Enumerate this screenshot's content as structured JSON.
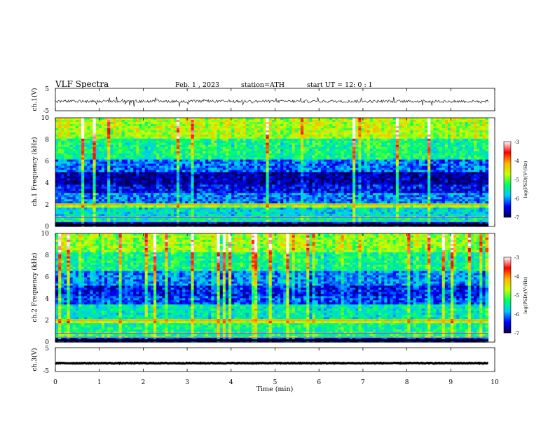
{
  "header": {
    "title": "VLF Spectra",
    "date": "Feb. 1 , 2023",
    "station": "station=ATH",
    "start_ut": "start UT = 12: 0 : 1"
  },
  "chart_data": [
    {
      "type": "line",
      "panel": "ch1-waveform",
      "ylabel": "ch.1(V)",
      "ylim": [
        -5,
        5
      ],
      "y_ticks": [
        "5",
        "-5"
      ],
      "baseline": -0.8,
      "noise_amplitude": 0.6,
      "spike_amplitude": 2.0
    },
    {
      "type": "heatmap",
      "panel": "ch1-spectrogram",
      "ylabel": "ch.1 Frequency (kHz)",
      "ylim": [
        0,
        10
      ],
      "y_ticks": [
        "0",
        "2",
        "4",
        "6",
        "8",
        "10"
      ],
      "xlim": [
        0,
        10
      ],
      "data_end_min": 9.85,
      "colorbar_label": "log(PSD)(V²/Hz)",
      "colorbar_range": [
        -7,
        -3
      ],
      "colorbar_ticks": [
        "-3",
        "-4",
        "-5",
        "-6",
        "-7"
      ],
      "bands": [
        {
          "from": 0.0,
          "to": 0.3,
          "level": -6.6
        },
        {
          "from": 0.3,
          "to": 1.0,
          "level": -5.6
        },
        {
          "from": 1.0,
          "to": 1.8,
          "level": -5.8
        },
        {
          "from": 1.8,
          "to": 2.2,
          "level": -4.9
        },
        {
          "from": 2.2,
          "to": 3.0,
          "level": -6.2
        },
        {
          "from": 3.0,
          "to": 3.8,
          "level": -6.6
        },
        {
          "from": 3.8,
          "to": 5.0,
          "level": -6.9
        },
        {
          "from": 5.0,
          "to": 6.2,
          "level": -6.3
        },
        {
          "from": 6.2,
          "to": 8.0,
          "level": -5.6
        },
        {
          "from": 8.0,
          "to": 10.0,
          "level": -5.0
        }
      ]
    },
    {
      "type": "heatmap",
      "panel": "ch2-spectrogram",
      "ylabel": "ch.2 Frequency (kHz)",
      "ylim": [
        0,
        10
      ],
      "y_ticks": [
        "0",
        "2",
        "4",
        "6",
        "8",
        "10"
      ],
      "xlim": [
        0,
        10
      ],
      "data_end_min": 9.85,
      "colorbar_label": "log(PSD)(V²/Hz)",
      "colorbar_range": [
        -7,
        -3
      ],
      "colorbar_ticks": [
        "-3",
        "-4",
        "-5",
        "-6",
        "-7"
      ],
      "bands": [
        {
          "from": 0.0,
          "to": 0.3,
          "level": -6.6
        },
        {
          "from": 0.3,
          "to": 1.0,
          "level": -5.4
        },
        {
          "from": 1.0,
          "to": 1.8,
          "level": -5.5
        },
        {
          "from": 1.8,
          "to": 2.2,
          "level": -4.8
        },
        {
          "from": 2.2,
          "to": 3.4,
          "level": -5.7
        },
        {
          "from": 3.4,
          "to": 4.2,
          "level": -6.4
        },
        {
          "from": 4.2,
          "to": 5.2,
          "level": -6.6
        },
        {
          "from": 5.2,
          "to": 6.5,
          "level": -6.2
        },
        {
          "from": 6.5,
          "to": 8.2,
          "level": -5.6
        },
        {
          "from": 8.2,
          "to": 10.0,
          "level": -5.1
        }
      ]
    },
    {
      "type": "line",
      "panel": "ch3-waveform",
      "ylabel": "ch.3(V)",
      "ylim": [
        -5,
        5
      ],
      "y_ticks": [
        "5",
        "-5"
      ],
      "baseline": -1.5,
      "noise_amplitude": 0.15,
      "spike_amplitude": 0.0
    }
  ],
  "x_axis": {
    "label": "Time (min)",
    "range": [
      0,
      10
    ],
    "ticks": [
      "0",
      "1",
      "2",
      "3",
      "4",
      "5",
      "6",
      "7",
      "8",
      "9",
      "10"
    ]
  },
  "colors": {
    "colormap": [
      "#000050",
      "#0000ff",
      "#00c8ff",
      "#00ff64",
      "#c8ff00",
      "#ffb400",
      "#ff0000",
      "#ffffff"
    ],
    "trace": "#000000"
  }
}
